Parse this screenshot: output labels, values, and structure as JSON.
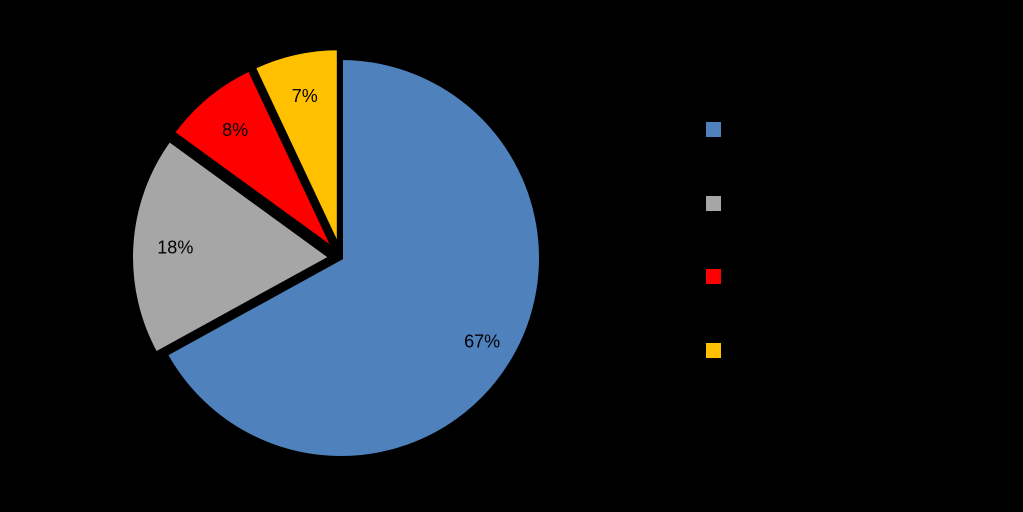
{
  "chart_data": {
    "type": "pie",
    "slices": [
      {
        "name": "",
        "value": 67,
        "label": "67%",
        "color": "#4F81BD",
        "exploded": false
      },
      {
        "name": "",
        "value": 18,
        "label": "18%",
        "color": "#A6A6A6",
        "exploded": true
      },
      {
        "name": "",
        "value": 8,
        "label": "8%",
        "color": "#FF0000",
        "exploded": true
      },
      {
        "name": "",
        "value": 7,
        "label": "7%",
        "color": "#FFC000",
        "exploded": true
      }
    ],
    "legend": "right",
    "background": "#000000"
  }
}
